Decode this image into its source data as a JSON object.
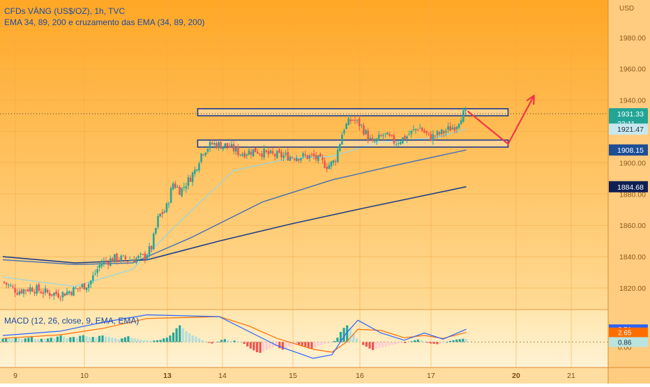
{
  "header": {
    "symbol_line": "CFDs VÀNG (US$/OZ), 1h, TVC",
    "indicator_line": "EMA 34, 89, 200 e cruzamento das EMA (34, 89, 200)",
    "macd_label": "MACD (12, 26, close, 9, EMA, EMA)"
  },
  "price_axis": {
    "currency": "USD",
    "ticks": [
      "1980.00",
      "1960.00",
      "1940.00",
      "1900.00",
      "1880.00",
      "1860.00",
      "1840.00",
      "1820.00"
    ]
  },
  "price_badges": {
    "last": "1931.33",
    "countdown": "23:11",
    "ema34": "1921.47",
    "ema89": "1908.15",
    "ema200": "1884.68"
  },
  "macd_axis": {
    "macd_value": "3.51",
    "signal_value": "2.65",
    "hist_value": "0.86",
    "partial_tick": "0.00"
  },
  "time_axis": {
    "ticks": [
      "9",
      "10",
      "13",
      "14",
      "15",
      "16",
      "17",
      "20",
      "21"
    ]
  },
  "colors": {
    "background_top": "#ffa726",
    "background_bottom": "#ffe0a3",
    "candle_up": "#26a69a",
    "candle_down": "#ef5350",
    "ema34": "#8fd6e8",
    "ema89": "#3f6fb5",
    "ema200": "#1f3f86",
    "macd_line": "#2962ff",
    "signal_line": "#ff6d00",
    "zone_border": "#1e3a8a",
    "forecast_arrow": "#f23645",
    "badge_last": "#22a596",
    "badge_ema34": "#c7e8ef",
    "badge_ema89": "#1d4e96",
    "badge_ema200": "#0e1f53"
  },
  "chart_data": [
    {
      "type": "candlestick",
      "title": "CFDs VÀNG (US$/OZ), 1h, TVC",
      "ylabel": "USD",
      "ylim": [
        1810,
        1995
      ],
      "x_ticks": [
        "9",
        "10",
        "13",
        "14",
        "15",
        "16",
        "17",
        "20",
        "21"
      ],
      "legend": "top-left",
      "grid": true,
      "price_path": [
        {
          "x": 0,
          "y": 1824
        },
        {
          "x": 10,
          "y": 1818
        },
        {
          "x": 20,
          "y": 1820
        },
        {
          "x": 30,
          "y": 1817
        },
        {
          "x": 40,
          "y": 1816
        },
        {
          "x": 50,
          "y": 1819
        },
        {
          "x": 60,
          "y": 1823
        },
        {
          "x": 68,
          "y": 1836
        },
        {
          "x": 78,
          "y": 1839
        },
        {
          "x": 88,
          "y": 1838
        },
        {
          "x": 98,
          "y": 1840
        },
        {
          "x": 103,
          "y": 1846
        },
        {
          "x": 108,
          "y": 1866
        },
        {
          "x": 113,
          "y": 1870
        },
        {
          "x": 118,
          "y": 1887
        },
        {
          "x": 123,
          "y": 1882
        },
        {
          "x": 128,
          "y": 1888
        },
        {
          "x": 133,
          "y": 1895
        },
        {
          "x": 138,
          "y": 1907
        },
        {
          "x": 145,
          "y": 1912
        },
        {
          "x": 155,
          "y": 1911
        },
        {
          "x": 165,
          "y": 1906
        },
        {
          "x": 175,
          "y": 1908
        },
        {
          "x": 185,
          "y": 1905
        },
        {
          "x": 200,
          "y": 1904
        },
        {
          "x": 215,
          "y": 1904
        },
        {
          "x": 225,
          "y": 1898
        },
        {
          "x": 230,
          "y": 1901
        },
        {
          "x": 236,
          "y": 1922
        },
        {
          "x": 242,
          "y": 1928
        },
        {
          "x": 248,
          "y": 1924
        },
        {
          "x": 256,
          "y": 1912
        },
        {
          "x": 264,
          "y": 1918
        },
        {
          "x": 272,
          "y": 1913
        },
        {
          "x": 280,
          "y": 1917
        },
        {
          "x": 288,
          "y": 1923
        },
        {
          "x": 296,
          "y": 1916
        },
        {
          "x": 304,
          "y": 1919
        },
        {
          "x": 314,
          "y": 1924
        },
        {
          "x": 318,
          "y": 1931
        },
        {
          "x": 321,
          "y": 1931
        }
      ],
      "series": [
        {
          "name": "EMA 34",
          "values": [
            {
              "x": 0,
              "y": 1827
            },
            {
              "x": 50,
              "y": 1821
            },
            {
              "x": 90,
              "y": 1832
            },
            {
              "x": 120,
              "y": 1860
            },
            {
              "x": 160,
              "y": 1895
            },
            {
              "x": 200,
              "y": 1903
            },
            {
              "x": 228,
              "y": 1904
            },
            {
              "x": 260,
              "y": 1913
            },
            {
              "x": 300,
              "y": 1916
            },
            {
              "x": 321,
              "y": 1921.47
            }
          ]
        },
        {
          "name": "EMA 89",
          "values": [
            {
              "x": 0,
              "y": 1838
            },
            {
              "x": 50,
              "y": 1835
            },
            {
              "x": 90,
              "y": 1836
            },
            {
              "x": 130,
              "y": 1852
            },
            {
              "x": 180,
              "y": 1875
            },
            {
              "x": 228,
              "y": 1889
            },
            {
              "x": 270,
              "y": 1898
            },
            {
              "x": 321,
              "y": 1908.15
            }
          ]
        },
        {
          "name": "EMA 200",
          "values": [
            {
              "x": 0,
              "y": 1840
            },
            {
              "x": 50,
              "y": 1836
            },
            {
              "x": 100,
              "y": 1838
            },
            {
              "x": 150,
              "y": 1850
            },
            {
              "x": 200,
              "y": 1861
            },
            {
              "x": 250,
              "y": 1871
            },
            {
              "x": 321,
              "y": 1884.68
            }
          ]
        }
      ],
      "zones": [
        {
          "x_start": 135,
          "x_end": 350,
          "y_low": 1930,
          "y_high": 1934.5
        },
        {
          "x_start": 135,
          "x_end": 350,
          "y_low": 1910,
          "y_high": 1914.5
        }
      ],
      "forecast_arrow": [
        {
          "x": 322,
          "y": 1933
        },
        {
          "x": 350,
          "y": 1912
        },
        {
          "x": 368,
          "y": 1943
        }
      ]
    },
    {
      "type": "bar",
      "title": "MACD (12, 26, close, 9, EMA, EMA)",
      "ylim": [
        -8,
        6.5
      ],
      "histogram": [
        0.9,
        1.1,
        1.0,
        0.9,
        1.3,
        1.1,
        0.8,
        1.0,
        1.2,
        1.4,
        0.8,
        0.7,
        0.9,
        0.8,
        1.0,
        1.2,
        1.0,
        1.5,
        1.8,
        1.5,
        1.1,
        1.3,
        1.4,
        1.2,
        1.7,
        1.9,
        1.6,
        1.3,
        1.4,
        1.2,
        1.7,
        1.8,
        1.5,
        1.4,
        1.2,
        1.1,
        0.7,
        1.0,
        1.3,
        1.6,
        1.2,
        1.0,
        0.8,
        0.6,
        0.5,
        0.4,
        0.3,
        0.4,
        0.5,
        0.6,
        1.0,
        1.2,
        1.8,
        2.6,
        3.8,
        4.6,
        3.8,
        3.0,
        2.4,
        1.8,
        1.5,
        1.0,
        0.5,
        0.1,
        -0.2,
        -0.4,
        -0.2,
        0.1,
        0.6,
        0.8,
        0.5,
        0.3,
        0.4,
        0.2,
        0.0,
        -0.5,
        -1.2,
        -1.8,
        -2.3,
        -2.8,
        -3.0,
        -2.6,
        -2.2,
        -1.8,
        -1.4,
        -1.1,
        -1.7,
        -2.1,
        -1.8,
        -1.3,
        -0.9,
        -0.6,
        -0.7,
        -1.0,
        -1.3,
        -1.6,
        -1.8,
        -1.5,
        -1.1,
        -0.9,
        -0.5,
        -0.3,
        -0.1,
        0.3,
        1.2,
        2.8,
        3.9,
        4.6,
        3.7,
        2.5,
        1.0,
        0.2,
        -0.8,
        -1.3,
        -1.8,
        -2.2,
        -1.9,
        -1.6,
        -1.5,
        -1.2,
        -1.0,
        -0.8,
        -0.6,
        -0.3,
        -0.2,
        -0.3,
        -0.1,
        0.2,
        0.5,
        0.7,
        0.4,
        0.1,
        -0.2,
        -0.4,
        -0.5,
        -0.6,
        -0.4,
        -0.2,
        0.0,
        0.3,
        0.5,
        0.7,
        0.8,
        0.9,
        0.86
      ],
      "macd_line": [
        {
          "x": 0,
          "y": 1.8
        },
        {
          "x": 40,
          "y": 3.0
        },
        {
          "x": 70,
          "y": 5.5
        },
        {
          "x": 100,
          "y": 7.5
        },
        {
          "x": 150,
          "y": 7.0
        },
        {
          "x": 170,
          "y": 3.0
        },
        {
          "x": 190,
          "y": -1.0
        },
        {
          "x": 215,
          "y": -4.5
        },
        {
          "x": 228,
          "y": -3.5
        },
        {
          "x": 238,
          "y": 2.5
        },
        {
          "x": 246,
          "y": 6.0
        },
        {
          "x": 262,
          "y": 2.5
        },
        {
          "x": 278,
          "y": 0.5
        },
        {
          "x": 292,
          "y": 2.5
        },
        {
          "x": 305,
          "y": 0.8
        },
        {
          "x": 321,
          "y": 3.51
        }
      ],
      "signal_line": [
        {
          "x": 0,
          "y": 1.0
        },
        {
          "x": 40,
          "y": 2.0
        },
        {
          "x": 70,
          "y": 3.8
        },
        {
          "x": 100,
          "y": 6.5
        },
        {
          "x": 150,
          "y": 7.0
        },
        {
          "x": 170,
          "y": 4.5
        },
        {
          "x": 190,
          "y": 1.0
        },
        {
          "x": 215,
          "y": -2.0
        },
        {
          "x": 228,
          "y": -2.8
        },
        {
          "x": 238,
          "y": 0.0
        },
        {
          "x": 246,
          "y": 3.5
        },
        {
          "x": 262,
          "y": 3.2
        },
        {
          "x": 278,
          "y": 1.2
        },
        {
          "x": 292,
          "y": 1.8
        },
        {
          "x": 305,
          "y": 1.0
        },
        {
          "x": 321,
          "y": 2.65
        }
      ]
    }
  ]
}
